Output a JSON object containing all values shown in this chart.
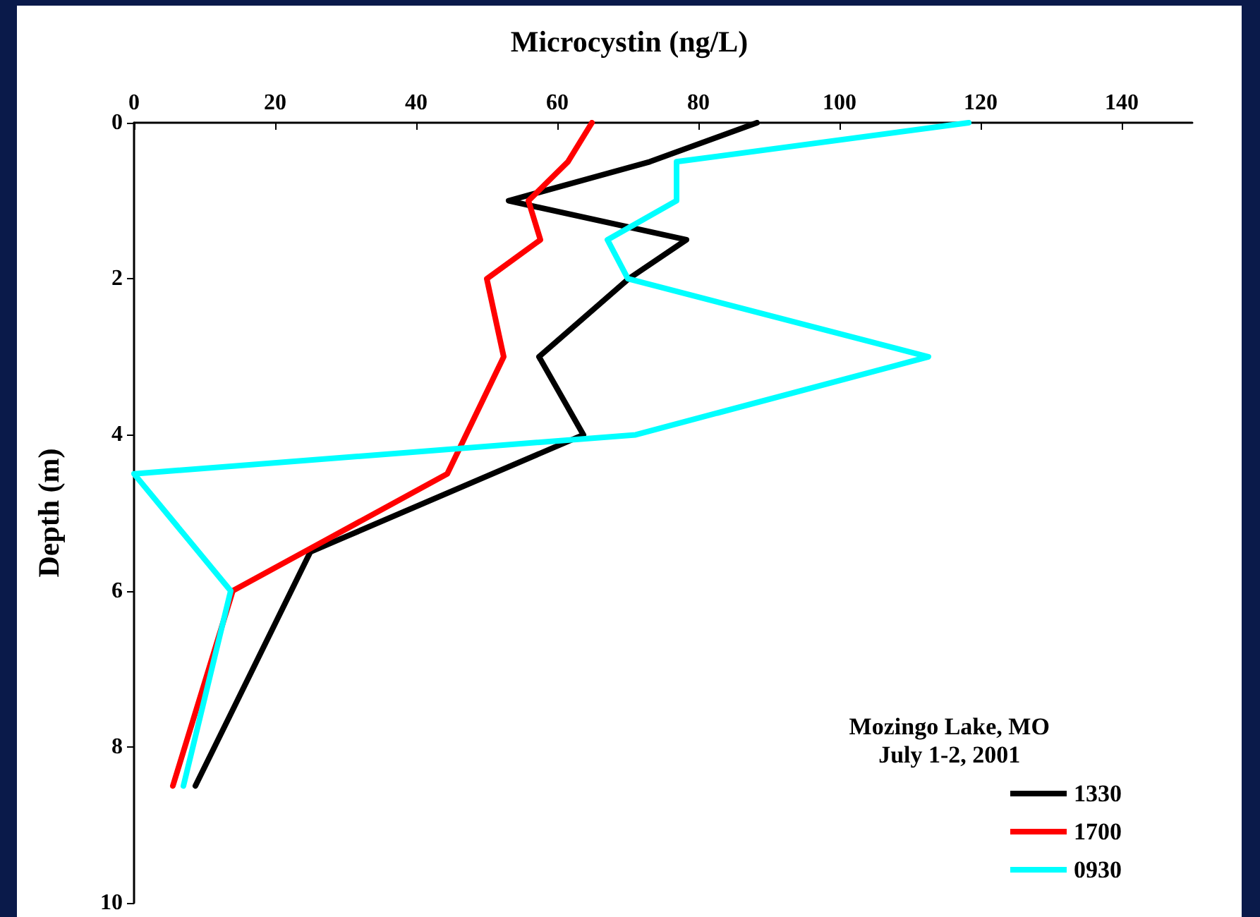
{
  "chart_data": {
    "type": "line",
    "title": "Microcystin (ng/L)",
    "ylabel": "Depth (m)",
    "legend_title": "Mozingo Lake, MO\nJuly 1-2, 2001",
    "xlim": [
      0,
      150
    ],
    "xticks": [
      0,
      20,
      40,
      60,
      80,
      100,
      120,
      140
    ],
    "ylim": [
      10,
      0
    ],
    "yticks": [
      0,
      2,
      4,
      6,
      8,
      10
    ],
    "grid": false,
    "legend": "bottom right",
    "marker": "none",
    "line_style": "solid",
    "series": [
      {
        "name": "1330",
        "color": "#000000",
        "x": [
          88.3,
          73.1,
          53.1,
          78.3,
          70.1,
          57.4,
          63.7,
          25.0,
          8.7
        ],
        "values": [
          0,
          0.5,
          1,
          1.5,
          2,
          3,
          4,
          5.5,
          8.5
        ]
      },
      {
        "name": "1700",
        "color": "#ff0000",
        "x": [
          64.9,
          61.5,
          55.9,
          57.6,
          50.0,
          52.4,
          44.4,
          14.0,
          5.5
        ],
        "values": [
          0,
          0.5,
          1,
          1.5,
          2,
          3,
          4.5,
          6,
          8.5
        ]
      },
      {
        "name": "0930",
        "color": "#00ffff",
        "x": [
          118.3,
          76.9,
          76.9,
          67.1,
          70.0,
          112.6,
          71.1,
          0,
          13.7,
          7.0
        ],
        "values": [
          0,
          0.5,
          1,
          1.5,
          2,
          3,
          4,
          4.5,
          6,
          8.5
        ]
      }
    ]
  }
}
